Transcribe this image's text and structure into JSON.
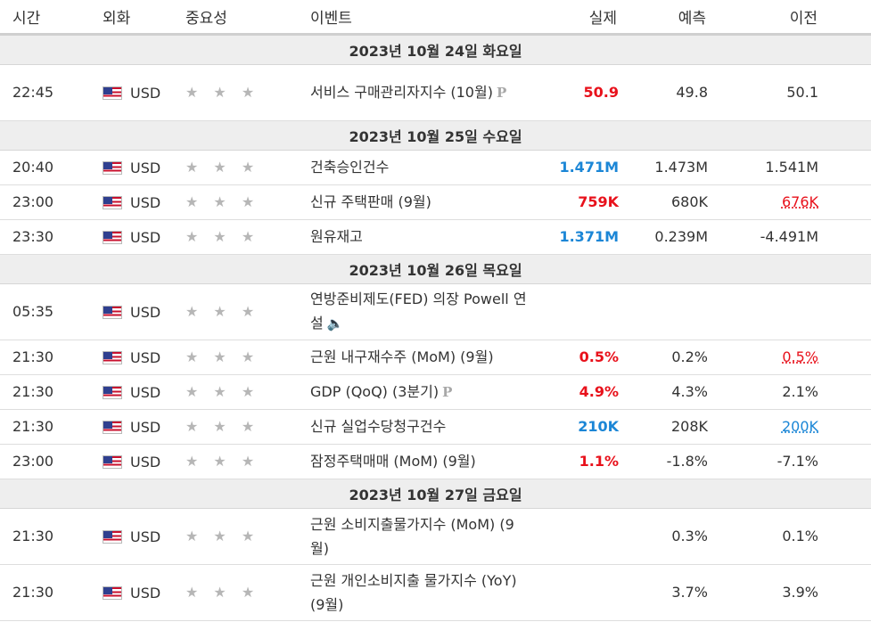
{
  "header": {
    "time": "시간",
    "currency": "외화",
    "importance": "중요성",
    "event": "이벤트",
    "actual": "실제",
    "forecast": "예측",
    "previous": "이전"
  },
  "colors": {
    "better": "#e8111b",
    "worse": "#1b86d6",
    "star": "#b6b6b6"
  },
  "groups": [
    {
      "date": "2023년 10월 24일 화요일",
      "rows": [
        {
          "time": "22:45",
          "currency": "USD",
          "stars": "★ ★ ★",
          "event": "서비스 구매관리자지수 (10월)",
          "tag": "P",
          "actual": "50.9",
          "actual_color": "red",
          "forecast": "49.8",
          "previous": "50.1",
          "previous_style": "",
          "tall": true
        }
      ]
    },
    {
      "date": "2023년 10월 25일 수요일",
      "rows": [
        {
          "time": "20:40",
          "currency": "USD",
          "stars": "★ ★ ★",
          "event": "건축승인건수",
          "tag": "",
          "actual": "1.471M",
          "actual_color": "blue",
          "forecast": "1.473M",
          "previous": "1.541M",
          "previous_style": ""
        },
        {
          "time": "23:00",
          "currency": "USD",
          "stars": "★ ★ ★",
          "event": "신규 주택판매 (9월)",
          "tag": "",
          "actual": "759K",
          "actual_color": "red",
          "forecast": "680K",
          "previous": "676K",
          "previous_style": "u-red"
        },
        {
          "time": "23:30",
          "currency": "USD",
          "stars": "★ ★ ★",
          "event": "원유재고",
          "tag": "",
          "actual": "1.371M",
          "actual_color": "blue",
          "forecast": "0.239M",
          "previous": "-4.491M",
          "previous_style": ""
        }
      ]
    },
    {
      "date": "2023년 10월 26일 목요일",
      "rows": [
        {
          "time": "05:35",
          "currency": "USD",
          "stars": "★ ★ ★",
          "event": "연방준비제도(FED) 의장 Powell 연설",
          "tag": "speaker-icon",
          "actual": "",
          "actual_color": "",
          "forecast": "",
          "previous": "",
          "previous_style": "",
          "tall": true
        },
        {
          "time": "21:30",
          "currency": "USD",
          "stars": "★ ★ ★",
          "event": "근원 내구재수주 (MoM) (9월)",
          "tag": "",
          "actual": "0.5%",
          "actual_color": "red",
          "forecast": "0.2%",
          "previous": "0.5%",
          "previous_style": "u-red"
        },
        {
          "time": "21:30",
          "currency": "USD",
          "stars": "★ ★ ★",
          "event": "GDP (QoQ) (3분기)",
          "tag": "P",
          "actual": "4.9%",
          "actual_color": "red",
          "forecast": "4.3%",
          "previous": "2.1%",
          "previous_style": ""
        },
        {
          "time": "21:30",
          "currency": "USD",
          "stars": "★ ★ ★",
          "event": "신규 실업수당청구건수",
          "tag": "",
          "actual": "210K",
          "actual_color": "blue",
          "forecast": "208K",
          "previous": "200K",
          "previous_style": "u-blue"
        },
        {
          "time": "23:00",
          "currency": "USD",
          "stars": "★ ★ ★",
          "event": "잠정주택매매 (MoM) (9월)",
          "tag": "",
          "actual": "1.1%",
          "actual_color": "red",
          "forecast": "-1.8%",
          "previous": "-7.1%",
          "previous_style": ""
        }
      ]
    },
    {
      "date": "2023년 10월 27일 금요일",
      "rows": [
        {
          "time": "21:30",
          "currency": "USD",
          "stars": "★ ★ ★",
          "event": "근원 소비지출물가지수 (MoM) (9월)",
          "tag": "",
          "actual": "",
          "actual_color": "",
          "forecast": "0.3%",
          "previous": "0.1%",
          "previous_style": "",
          "tall": true
        },
        {
          "time": "21:30",
          "currency": "USD",
          "stars": "★ ★ ★",
          "event": "근원 개인소비지출 물가지수 (YoY) (9월)",
          "tag": "",
          "actual": "",
          "actual_color": "",
          "forecast": "3.7%",
          "previous": "3.9%",
          "previous_style": "",
          "tall": true
        }
      ]
    }
  ]
}
